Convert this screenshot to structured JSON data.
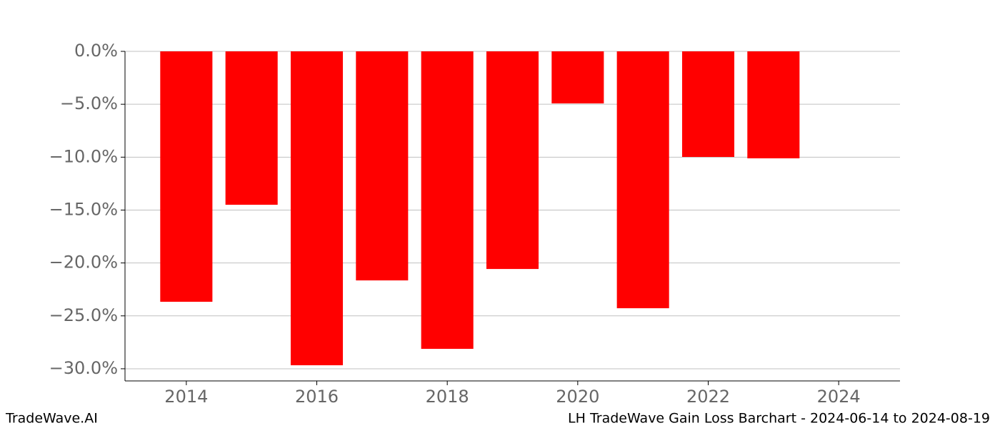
{
  "chart_data": {
    "type": "bar",
    "title": "LH TradeWave Gain Loss Barchart - 2024-06-14 to 2024-08-19",
    "watermark": "TradeWave.AI",
    "x": [
      2014,
      2015,
      2016,
      2017,
      2018,
      2019,
      2020,
      2021,
      2022,
      2023,
      2024
    ],
    "values": [
      -23.67,
      -14.5,
      -29.67,
      -21.65,
      -28.12,
      -20.57,
      -4.92,
      -24.28,
      -9.98,
      -10.11,
      0
    ],
    "color": "#ff0000",
    "bar_width": 0.8,
    "xlim": [
      2013.06,
      2024.94
    ],
    "xticks": [
      2014,
      2016,
      2018,
      2020,
      2022,
      2024
    ],
    "ylim": [
      -31.15,
      0
    ],
    "yticks": [
      {
        "value": 0,
        "label": "0.0%"
      },
      {
        "value": -5,
        "label": "−5.0%"
      },
      {
        "value": -10,
        "label": "−10.0%"
      },
      {
        "value": -15,
        "label": "−15.0%"
      },
      {
        "value": -20,
        "label": "−20.0%"
      },
      {
        "value": -25,
        "label": "−25.0%"
      },
      {
        "value": -30,
        "label": "−30.0%"
      }
    ],
    "grid": true
  }
}
